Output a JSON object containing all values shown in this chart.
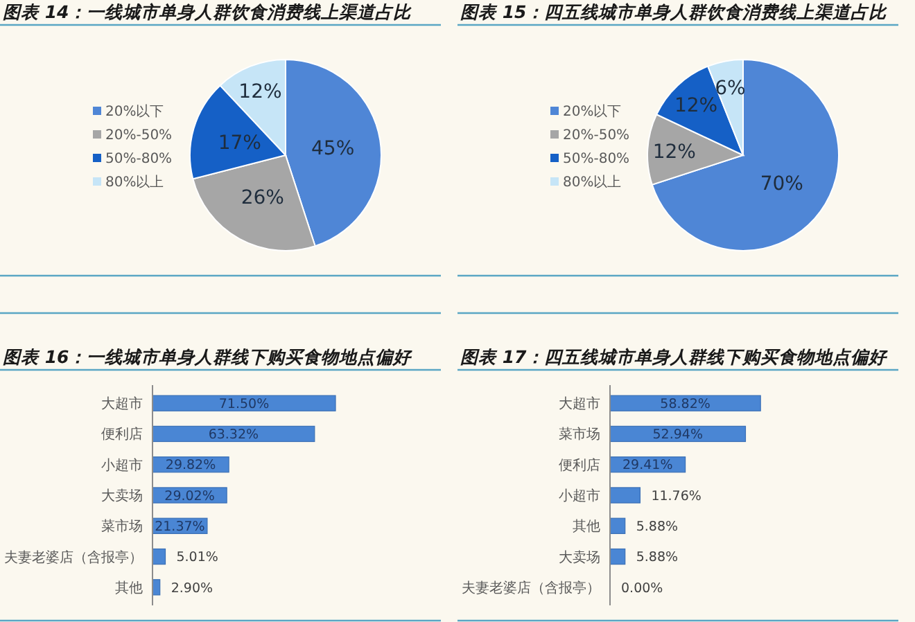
{
  "chart_data": [
    {
      "type": "pie",
      "title": "图表 14：一线城市单身人群饮食消费线上渠道占比",
      "categories": [
        "20%以下",
        "20%-50%",
        "50%-80%",
        "80%以上"
      ],
      "values": [
        45,
        26,
        17,
        12
      ],
      "colors": [
        "#4f86d6",
        "#a6a6a6",
        "#1560c6",
        "#c6e5f7"
      ],
      "value_labels": [
        "45%",
        "26%",
        "17%",
        "12%"
      ],
      "legend": "left"
    },
    {
      "type": "pie",
      "title": "图表 15：四五线城市单身人群饮食消费线上渠道占比",
      "categories": [
        "20%以下",
        "20%-50%",
        "50%-80%",
        "80%以上"
      ],
      "values": [
        70,
        12,
        12,
        6
      ],
      "colors": [
        "#4f86d6",
        "#a6a6a6",
        "#1560c6",
        "#c6e5f7"
      ],
      "value_labels": [
        "70%",
        "12%",
        "12%",
        "6%"
      ],
      "legend": "left"
    },
    {
      "type": "bar",
      "orientation": "horizontal",
      "title": "图表 16：一线城市单身人群线下购买食物地点偏好",
      "categories": [
        "大超市",
        "便利店",
        "小超市",
        "大卖场",
        "菜市场",
        "夫妻老婆店（含报亭）",
        "其他"
      ],
      "values": [
        71.5,
        63.32,
        29.82,
        29.02,
        21.37,
        5.01,
        2.9
      ],
      "value_labels": [
        "71.50%",
        "63.32%",
        "29.82%",
        "29.02%",
        "21.37%",
        "5.01%",
        "2.90%"
      ],
      "color": "#4a86d4"
    },
    {
      "type": "bar",
      "orientation": "horizontal",
      "title": "图表 17：四五线城市单身人群线下购买食物地点偏好",
      "categories": [
        "大超市",
        "菜市场",
        "便利店",
        "小超市",
        "其他",
        "大卖场",
        "夫妻老婆店（含报亭）"
      ],
      "values": [
        58.82,
        52.94,
        29.41,
        11.76,
        5.88,
        5.88,
        0
      ],
      "value_labels": [
        "58.82%",
        "52.94%",
        "29.41%",
        "11.76%",
        "5.88%",
        "5.88%",
        "0.00%"
      ],
      "color": "#4a86d4"
    }
  ]
}
